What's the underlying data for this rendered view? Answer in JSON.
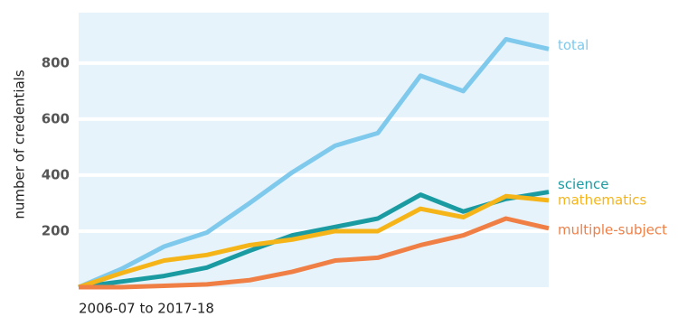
{
  "chart_data": {
    "type": "line",
    "xlabel": "2006-07 to 2017-18",
    "ylabel": "number of credentials",
    "categories": [
      null,
      null,
      null,
      null,
      null,
      null,
      null,
      null,
      null,
      null,
      null,
      null
    ],
    "series": [
      {
        "name": "total",
        "color": "#7fc9ec",
        "values": [
          0,
          65,
          145,
          195,
          300,
          410,
          505,
          550,
          755,
          700,
          885,
          850
        ]
      },
      {
        "name": "science",
        "color": "#1a9ba1",
        "values": [
          0,
          20,
          40,
          70,
          130,
          185,
          215,
          245,
          330,
          270,
          315,
          340
        ]
      },
      {
        "name": "mathematics",
        "color": "#f5b519",
        "values": [
          0,
          50,
          95,
          115,
          150,
          170,
          200,
          200,
          280,
          250,
          325,
          310
        ]
      },
      {
        "name": "multiple-subject",
        "color": "#f07f45",
        "values": [
          0,
          0,
          5,
          10,
          25,
          55,
          95,
          105,
          150,
          185,
          245,
          210
        ]
      }
    ],
    "ylim": [
      0,
      980
    ],
    "yticks": [
      200,
      400,
      600,
      800
    ],
    "grid": true
  }
}
